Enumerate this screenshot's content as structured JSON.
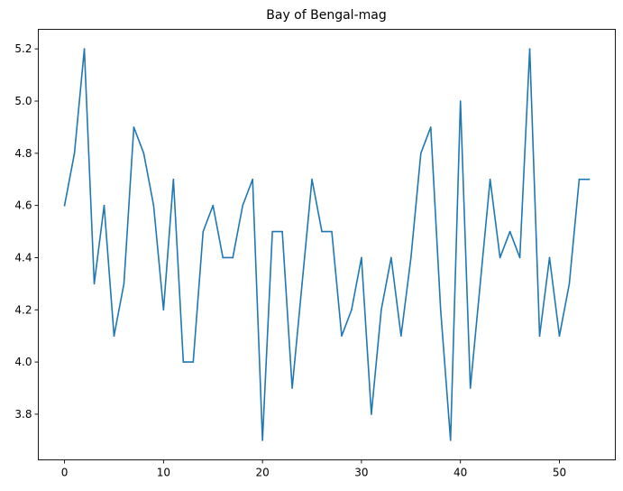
{
  "chart_data": {
    "type": "line",
    "title": "Bay of Bengal-mag",
    "xlabel": "",
    "ylabel": "",
    "xlim": [
      -2.65,
      55.65
    ],
    "ylim": [
      3.625,
      5.275
    ],
    "grid": false,
    "x_ticks": [
      0,
      10,
      20,
      30,
      40,
      50
    ],
    "y_ticks": [
      3.8,
      4.0,
      4.2,
      4.4,
      4.6,
      4.8,
      5.0,
      5.2
    ],
    "series": [
      {
        "color": "#1f77b4",
        "values": [
          4.6,
          4.8,
          5.2,
          4.3,
          4.6,
          4.1,
          4.3,
          4.9,
          4.8,
          4.6,
          4.2,
          4.7,
          4.0,
          4.0,
          4.5,
          4.6,
          4.4,
          4.4,
          4.6,
          4.7,
          3.7,
          4.5,
          4.5,
          3.9,
          4.3,
          4.7,
          4.5,
          4.5,
          4.1,
          4.2,
          4.4,
          3.8,
          4.2,
          4.4,
          4.1,
          4.4,
          4.8,
          4.9,
          4.2,
          3.7,
          5.0,
          3.9,
          4.3,
          4.7,
          4.4,
          4.5,
          4.4,
          5.2,
          4.1,
          4.4,
          4.1,
          4.3,
          4.7,
          4.7
        ]
      }
    ],
    "x_tick_labels": [
      "0",
      "10",
      "20",
      "30",
      "40",
      "50"
    ],
    "y_tick_labels": [
      "3.8",
      "4.0",
      "4.2",
      "4.4",
      "4.6",
      "4.8",
      "5.0",
      "5.2"
    ]
  }
}
